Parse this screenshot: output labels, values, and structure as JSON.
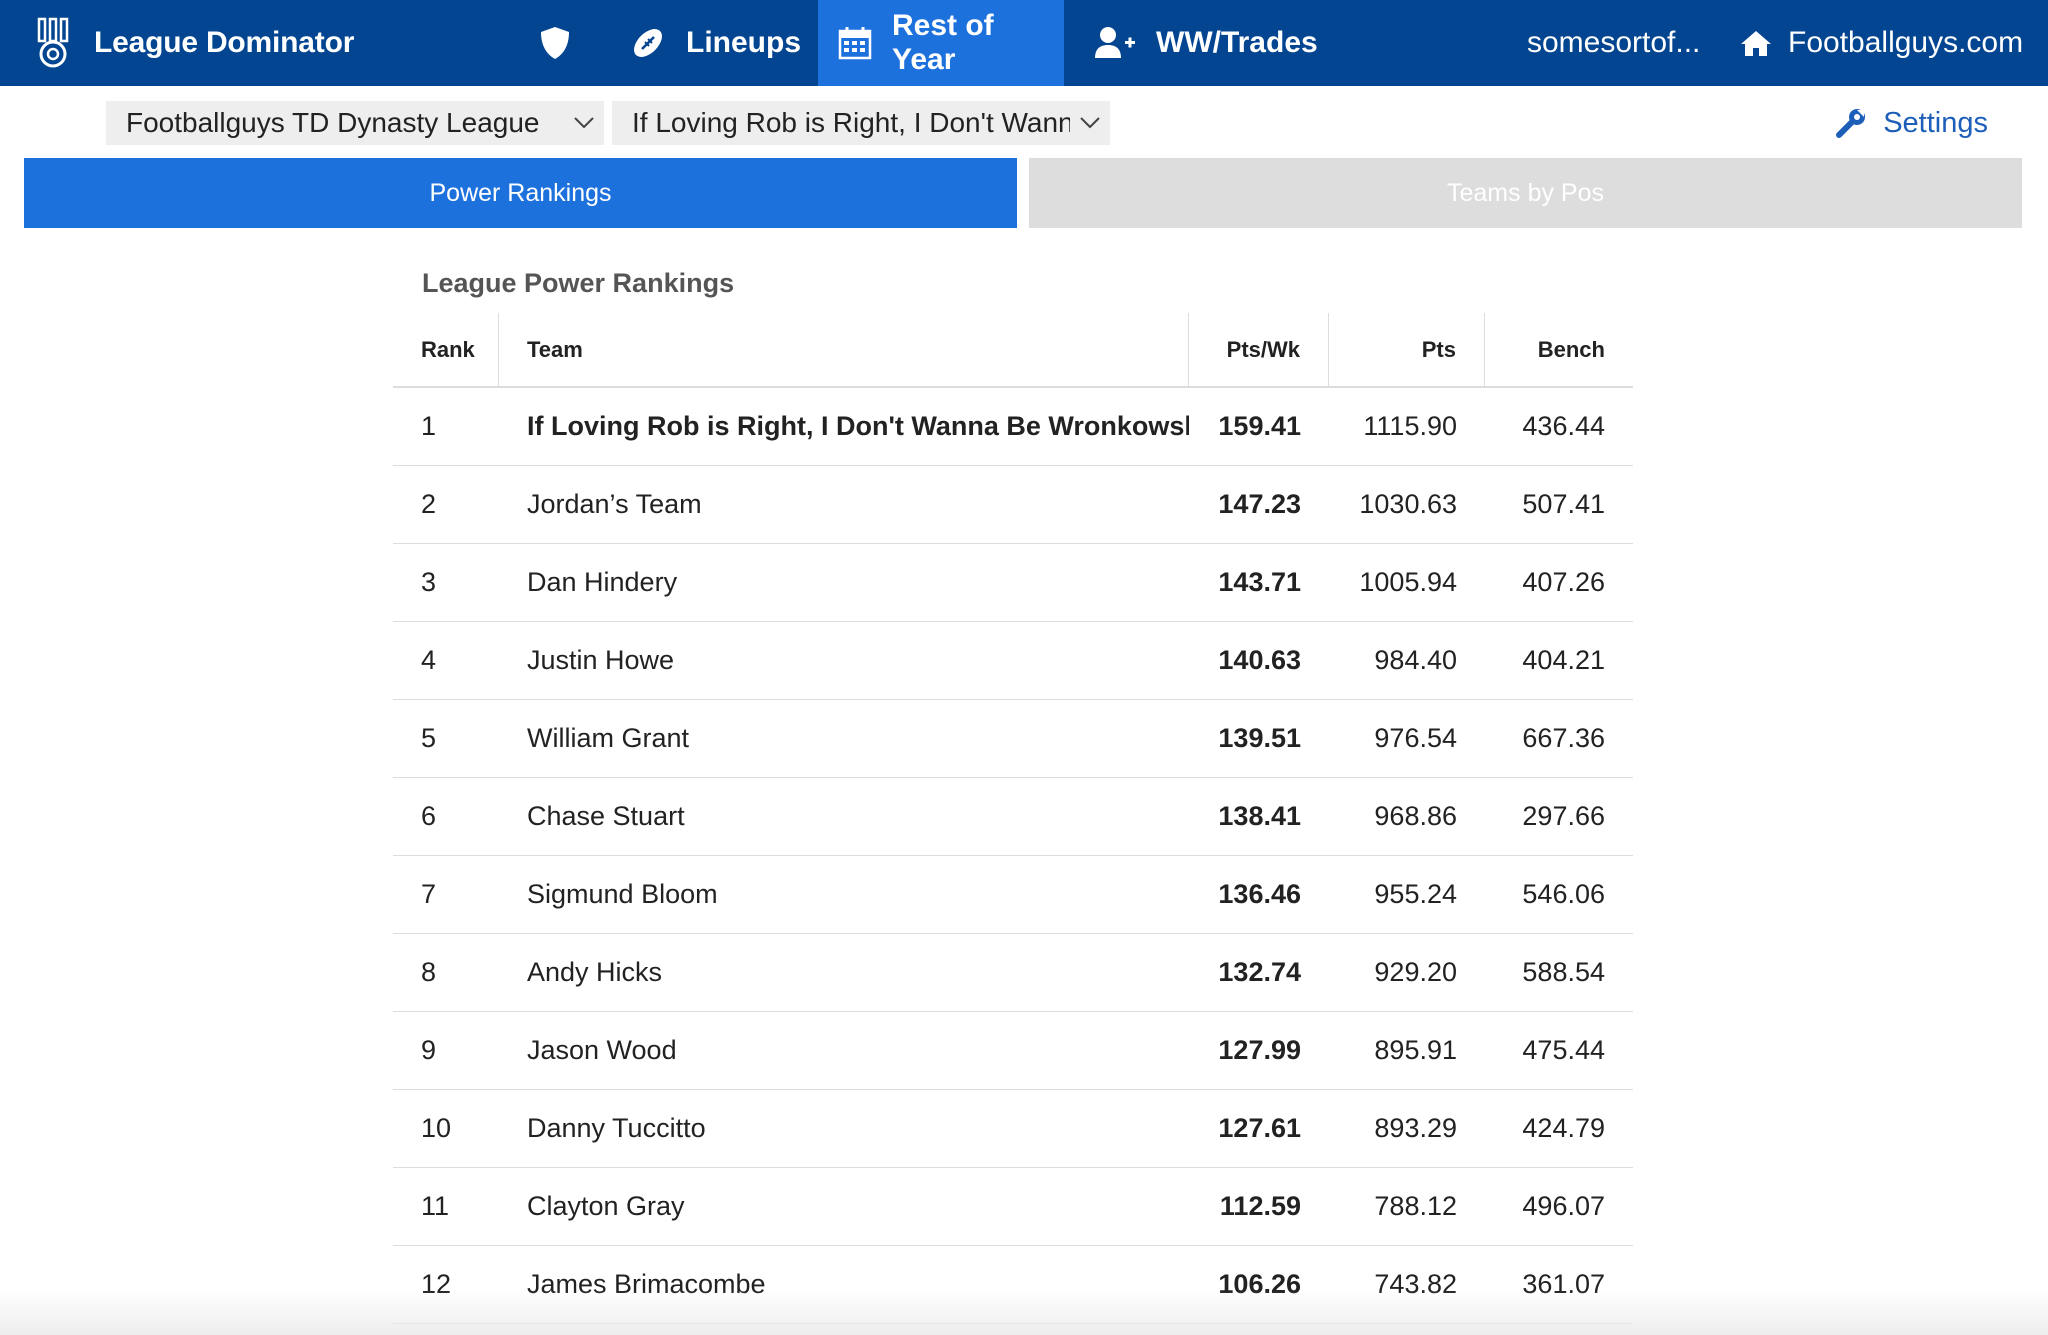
{
  "brand": {
    "title": "League Dominator",
    "icon": "medal-icon"
  },
  "nav": {
    "items": [
      {
        "label": "",
        "icon": "shield-icon"
      },
      {
        "label": "Lineups",
        "icon": "football-icon"
      },
      {
        "label": "Rest of Year",
        "icon": "calendar-icon",
        "active": true
      },
      {
        "label": "WW/Trades",
        "icon": "user-plus-icon"
      }
    ],
    "account": "somesortof...",
    "home": {
      "label": "Footballguys.com",
      "icon": "home-icon"
    }
  },
  "selectors": {
    "league": "Footballguys TD Dynasty League",
    "team": "If Loving Rob is Right, I Don't Wanna Be Wronkowski"
  },
  "settings_label": "Settings",
  "tabs": [
    {
      "label": "Power Rankings",
      "active": true
    },
    {
      "label": "Teams by Pos",
      "active": false
    }
  ],
  "section_title": "League Power Rankings",
  "table": {
    "headers": {
      "rank": "Rank",
      "team": "Team",
      "ppw": "Pts/Wk",
      "pts": "Pts",
      "bench": "Bench"
    },
    "rows": [
      {
        "rank": "1",
        "team": "If Loving Rob is Right, I Don't Wanna Be Wronkowski",
        "ppw": "159.41",
        "pts": "1115.90",
        "bench": "436.44"
      },
      {
        "rank": "2",
        "team": "Jordan’s Team",
        "ppw": "147.23",
        "pts": "1030.63",
        "bench": "507.41"
      },
      {
        "rank": "3",
        "team": "Dan Hindery",
        "ppw": "143.71",
        "pts": "1005.94",
        "bench": "407.26"
      },
      {
        "rank": "4",
        "team": "Justin Howe",
        "ppw": "140.63",
        "pts": "984.40",
        "bench": "404.21"
      },
      {
        "rank": "5",
        "team": "William Grant",
        "ppw": "139.51",
        "pts": "976.54",
        "bench": "667.36"
      },
      {
        "rank": "6",
        "team": "Chase Stuart",
        "ppw": "138.41",
        "pts": "968.86",
        "bench": "297.66"
      },
      {
        "rank": "7",
        "team": "Sigmund Bloom",
        "ppw": "136.46",
        "pts": "955.24",
        "bench": "546.06"
      },
      {
        "rank": "8",
        "team": "Andy Hicks",
        "ppw": "132.74",
        "pts": "929.20",
        "bench": "588.54"
      },
      {
        "rank": "9",
        "team": "Jason Wood",
        "ppw": "127.99",
        "pts": "895.91",
        "bench": "475.44"
      },
      {
        "rank": "10",
        "team": "Danny Tuccitto",
        "ppw": "127.61",
        "pts": "893.29",
        "bench": "424.79"
      },
      {
        "rank": "11",
        "team": "Clayton Gray",
        "ppw": "112.59",
        "pts": "788.12",
        "bench": "496.07"
      },
      {
        "rank": "12",
        "team": "James Brimacombe",
        "ppw": "106.26",
        "pts": "743.82",
        "bench": "361.07"
      }
    ]
  },
  "colors": {
    "nav_bg": "#034591",
    "accent": "#1d71dc",
    "link": "#1d5fb8",
    "inactive_tab": "#dddddd"
  }
}
